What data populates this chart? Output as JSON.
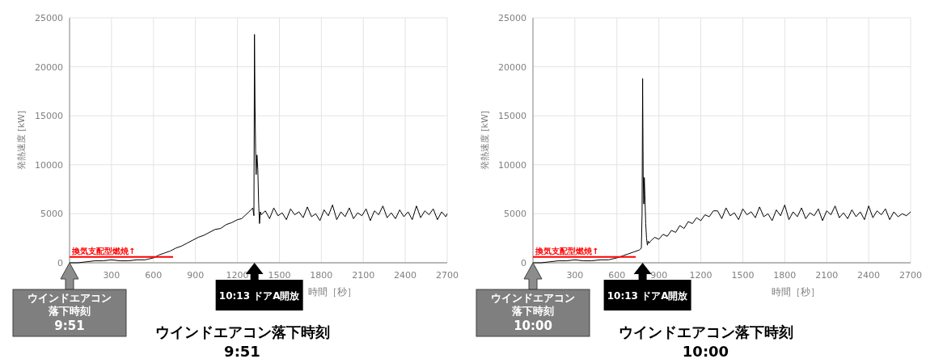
{
  "chart_data": [
    {
      "type": "line",
      "title": "ウインドエアコン落下時刻\n9:51",
      "xlabel": "時間［秒］",
      "ylabel": "発熱速度 [kW]",
      "xlim": [
        0,
        2700
      ],
      "ylim": [
        0,
        25000
      ],
      "xticks": [
        300,
        600,
        900,
        1200,
        1500,
        1800,
        2100,
        2400,
        2700
      ],
      "yticks": [
        0,
        5000,
        10000,
        15000,
        20000,
        25000
      ],
      "grid": true,
      "annotations": [
        {
          "text": "ウインドエアコン落下時刻\n9:51",
          "x": 0,
          "y": 0
        },
        "10:13 ドアA開放"
      ],
      "series": [
        {
          "color": "#000000",
          "x": [
            0,
            60,
            120,
            180,
            240,
            300,
            360,
            420,
            480,
            540,
            600,
            640,
            680,
            720,
            760,
            800,
            840,
            880,
            920,
            960,
            1000,
            1040,
            1080,
            1120,
            1160,
            1200,
            1230,
            1260,
            1290,
            1310,
            1318,
            1322,
            1326,
            1330,
            1334,
            1340,
            1346,
            1352,
            1358,
            1364,
            1370,
            1400,
            1430,
            1460,
            1490,
            1520,
            1550,
            1580,
            1610,
            1640,
            1670,
            1700,
            1730,
            1760,
            1790,
            1820,
            1850,
            1880,
            1910,
            1940,
            1970,
            2000,
            2030,
            2060,
            2090,
            2120,
            2150,
            2180,
            2210,
            2240,
            2270,
            2300,
            2330,
            2360,
            2390,
            2420,
            2450,
            2480,
            2510,
            2540,
            2570,
            2600,
            2630,
            2660,
            2690,
            2700
          ],
          "values": [
            0,
            0,
            100,
            200,
            200,
            300,
            200,
            200,
            300,
            300,
            500,
            800,
            1000,
            1200,
            1500,
            1700,
            2000,
            2300,
            2600,
            2800,
            3100,
            3400,
            3500,
            3900,
            4100,
            4400,
            4500,
            4900,
            5300,
            5600,
            4800,
            23300,
            16000,
            11500,
            9000,
            11000,
            9500,
            6000,
            4000,
            5200,
            4900,
            5300,
            4500,
            5600,
            4800,
            5100,
            4400,
            5500,
            4900,
            5200,
            4600,
            5700,
            4700,
            5000,
            4300,
            5400,
            4800,
            5900,
            4400,
            5200,
            4700,
            5600,
            4500,
            5100,
            4800,
            5500,
            4300,
            5300,
            4900,
            5800,
            4600,
            5100,
            4500,
            5400,
            4700,
            5200,
            4400,
            5800,
            4600,
            5300,
            4900,
            5500,
            4400,
            5200,
            4700,
            5000
          ]
        },
        {
          "name": "換気支配型燃焼↑",
          "color": "#ff0000",
          "x": [
            0,
            740
          ],
          "values": [
            600,
            600
          ]
        }
      ]
    },
    {
      "type": "line",
      "title": "ウインドエアコン落下時刻\n10:00",
      "xlabel": "時間［秒］",
      "ylabel": "発熱速度 [kW]",
      "xlim": [
        0,
        2700
      ],
      "ylim": [
        0,
        25000
      ],
      "xticks": [
        300,
        600,
        900,
        1200,
        1500,
        1800,
        2100,
        2400,
        2700
      ],
      "yticks": [
        0,
        5000,
        10000,
        15000,
        20000,
        25000
      ],
      "grid": true,
      "annotations": [
        {
          "text": "ウインドエアコン落下時刻\n10:00",
          "x": 0,
          "y": 0
        },
        "10:13 ドアA開放"
      ],
      "series": [
        {
          "color": "#000000",
          "x": [
            0,
            60,
            120,
            180,
            240,
            300,
            360,
            420,
            480,
            540,
            600,
            640,
            680,
            720,
            760,
            775,
            780,
            784,
            788,
            792,
            796,
            800,
            806,
            812,
            818,
            824,
            830,
            840,
            870,
            900,
            930,
            960,
            990,
            1020,
            1050,
            1080,
            1110,
            1140,
            1170,
            1200,
            1230,
            1260,
            1290,
            1320,
            1350,
            1380,
            1410,
            1440,
            1470,
            1500,
            1530,
            1560,
            1590,
            1620,
            1650,
            1680,
            1710,
            1740,
            1770,
            1800,
            1830,
            1860,
            1890,
            1920,
            1950,
            1980,
            2010,
            2040,
            2070,
            2100,
            2130,
            2160,
            2190,
            2220,
            2250,
            2280,
            2310,
            2340,
            2370,
            2400,
            2430,
            2460,
            2490,
            2520,
            2550,
            2580,
            2610,
            2640,
            2670,
            2700
          ],
          "values": [
            0,
            0,
            100,
            200,
            200,
            300,
            200,
            200,
            300,
            300,
            500,
            700,
            900,
            1100,
            1300,
            1500,
            5000,
            18800,
            9000,
            6000,
            8700,
            7000,
            4000,
            2500,
            1800,
            2200,
            2000,
            2200,
            2600,
            2400,
            2900,
            2700,
            3300,
            3100,
            3800,
            3500,
            4200,
            4000,
            4600,
            4300,
            4900,
            4700,
            5300,
            5300,
            4500,
            5600,
            4800,
            5100,
            4400,
            5500,
            4900,
            5200,
            4600,
            5700,
            4700,
            5000,
            4300,
            5400,
            4800,
            5900,
            4400,
            5200,
            4700,
            5600,
            4500,
            5100,
            4800,
            5500,
            4300,
            5300,
            4900,
            5800,
            4600,
            5100,
            4500,
            5400,
            4700,
            5200,
            4400,
            5800,
            4600,
            5300,
            4900,
            5500,
            4400,
            5200,
            4700,
            5000,
            4800,
            5200
          ]
        },
        {
          "name": "換気支配型燃焼↑",
          "color": "#ff0000",
          "x": [
            0,
            735
          ],
          "values": [
            600,
            600
          ]
        }
      ]
    }
  ]
}
